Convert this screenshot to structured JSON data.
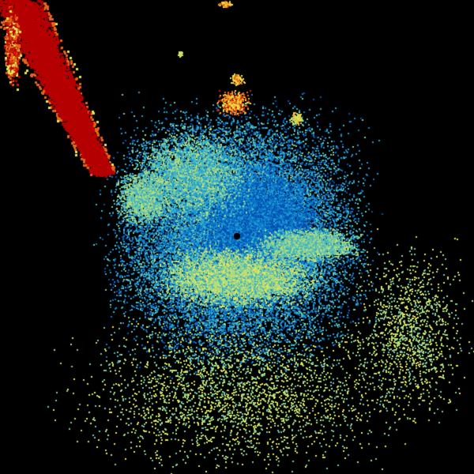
{
  "radar": {
    "background": "#000000",
    "palette": [
      "#0050b4",
      "#0a78c8",
      "#1e9bd2",
      "#3cb4c8",
      "#78c8a0",
      "#b4dc78",
      "#e6e650",
      "#f0b428",
      "#e66414",
      "#c81e0a",
      "#b40000"
    ]
  }
}
